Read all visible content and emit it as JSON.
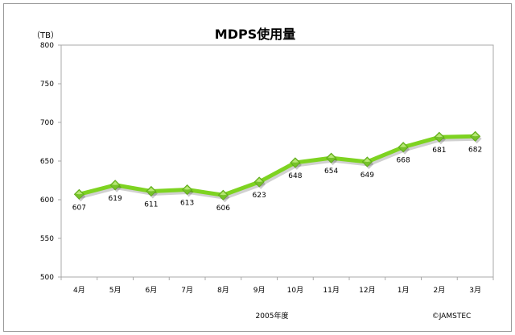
{
  "chart_data": {
    "type": "line",
    "title": "MDPS使用量",
    "unit_label": "（TB）",
    "categories": [
      "4月",
      "5月",
      "6月",
      "7月",
      "8月",
      "9月",
      "10月",
      "11月",
      "12月",
      "1月",
      "2月",
      "3月"
    ],
    "values": [
      607,
      619,
      611,
      613,
      606,
      623,
      648,
      654,
      649,
      668,
      681,
      682
    ],
    "ylim": [
      500,
      800
    ],
    "yticks": [
      500,
      550,
      600,
      650,
      700,
      750,
      800
    ],
    "grid": false,
    "legend": "none",
    "line_color": "#7ED321",
    "marker_color": "#76C22A",
    "marker": "diamond",
    "footnote_left": "2005年度",
    "footnote_right": "©JAMSTEC"
  }
}
